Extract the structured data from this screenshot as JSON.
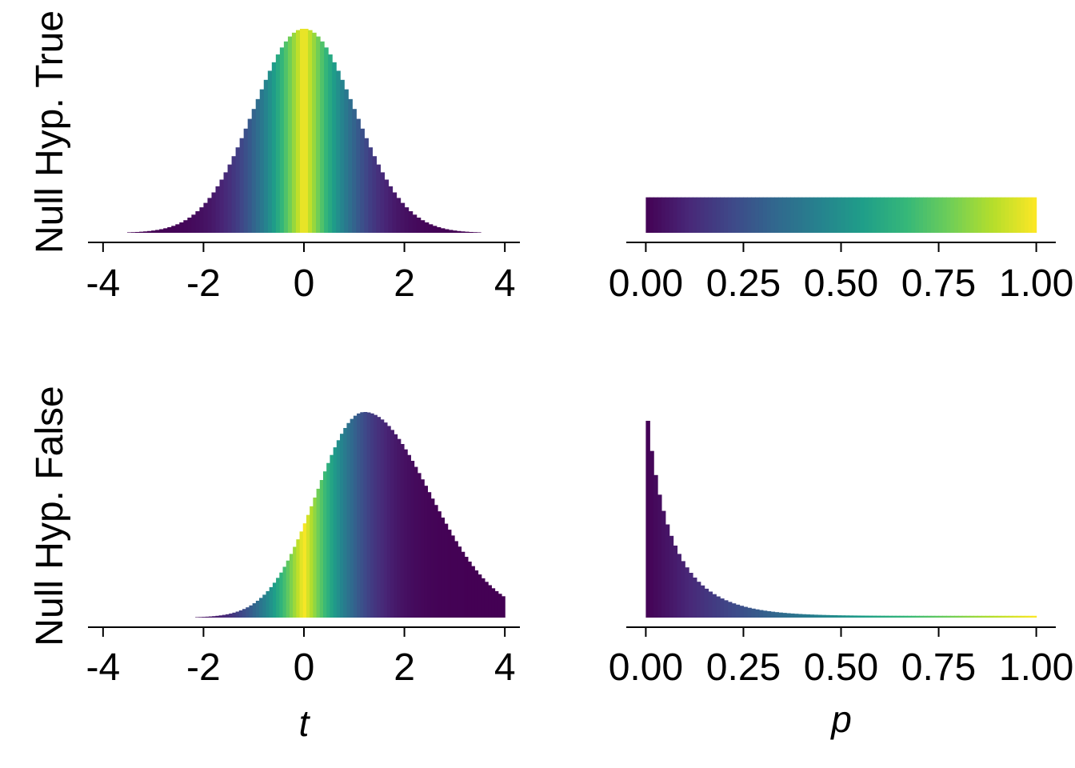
{
  "figure": {
    "rows": [
      "Null Hyp. True",
      "Null Hyp. False"
    ],
    "columns": [
      "t",
      "p"
    ]
  },
  "colormap": [
    "#440154",
    "#482878",
    "#3e4989",
    "#31688e",
    "#26828e",
    "#1f9e89",
    "#35b779",
    "#6ece58",
    "#b5de2b",
    "#fde725"
  ],
  "chart_data": [
    {
      "type": "histogram",
      "panel": "t-null-true",
      "row_label": "Null Hyp. True",
      "xlabel": "",
      "xlim": [
        -4.3,
        4.3
      ],
      "xticks": [
        -4,
        -2,
        0,
        2,
        4
      ],
      "xtick_labels": [
        "-4",
        "-2",
        "0",
        "2",
        "4"
      ],
      "x_range": [
        -4,
        4
      ],
      "bins": 100,
      "shape": {
        "distribution": "normal",
        "mean": 0,
        "sd": 1,
        "peak_density": 0.4
      },
      "fill": "viridis by p value (|t| near 0 = yellow, tails = purple)",
      "grid": false
    },
    {
      "type": "histogram",
      "panel": "p-null-true",
      "xlabel": "",
      "xlim": [
        -0.05,
        1.05
      ],
      "xticks": [
        0,
        0.25,
        0.5,
        0.75,
        1
      ],
      "xtick_labels": [
        "0.00",
        "0.25",
        "0.50",
        "0.75",
        "1.00"
      ],
      "x_range": [
        0,
        1
      ],
      "bins": 100,
      "shape": {
        "distribution": "uniform",
        "density": 1
      },
      "fill": "viridis by p value",
      "grid": false
    },
    {
      "type": "histogram",
      "panel": "t-null-false",
      "row_label": "Null Hyp. False",
      "xlabel": "t",
      "xlim": [
        -4.3,
        4.3
      ],
      "xticks": [
        -4,
        -2,
        0,
        2,
        4
      ],
      "xtick_labels": [
        "-4",
        "-2",
        "0",
        "2",
        "4"
      ],
      "x_range": [
        -2.7,
        4
      ],
      "bins": 100,
      "shape": {
        "distribution": "skewed",
        "mode": 1.2,
        "sd_left": 0.95,
        "sd_right": 1.3,
        "peak_density": 0.4
      },
      "fill": "viridis by p value of |t|",
      "grid": false
    },
    {
      "type": "histogram",
      "panel": "p-null-false",
      "xlabel": "p",
      "xlim": [
        -0.05,
        1.05
      ],
      "xticks": [
        0,
        0.25,
        0.5,
        0.75,
        1
      ],
      "xtick_labels": [
        "0.00",
        "0.25",
        "0.50",
        "0.75",
        "1.00"
      ],
      "x_range": [
        0,
        1
      ],
      "bins": 100,
      "shape": {
        "distribution": "decreasing",
        "density_at_0": 6.0,
        "density_at_1": 0.05
      },
      "fill": "viridis by p value",
      "grid": false
    }
  ]
}
